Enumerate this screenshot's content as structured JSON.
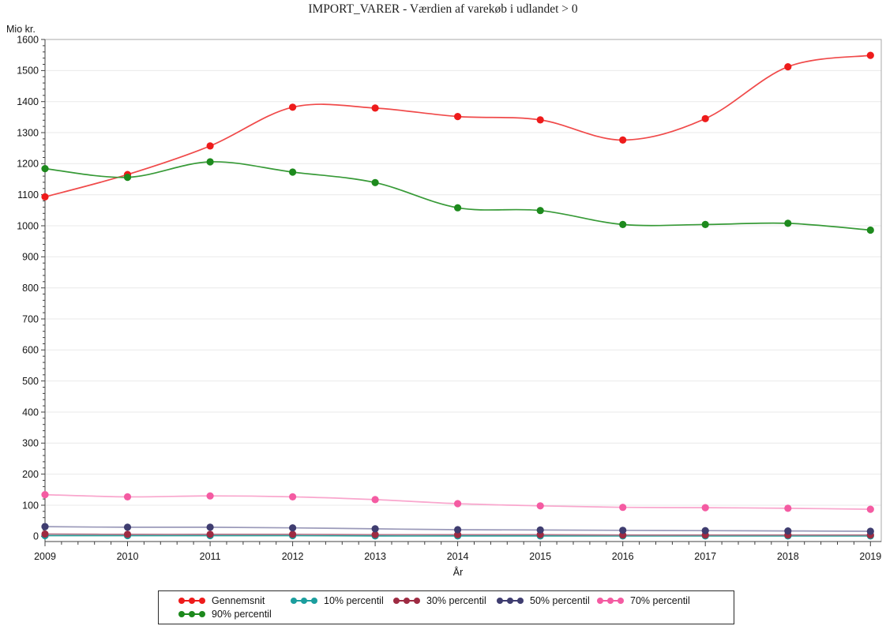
{
  "title": "IMPORT_VARER - Værdien af varekøb i udlandet > 0",
  "y_axis_unit_label": "Mio kr.",
  "x_axis_label": "År",
  "chart_data": {
    "type": "line",
    "title": "IMPORT_VARER - Værdien af varekøb i udlandet > 0",
    "xlabel": "År",
    "ylabel": "Mio kr.",
    "x": [
      2009,
      2010,
      2011,
      2012,
      2013,
      2014,
      2015,
      2016,
      2017,
      2018,
      2019
    ],
    "ylim": [
      0,
      1600
    ],
    "ytick_step": 100,
    "y_minor_step": 20,
    "x_minor_per_interval": 4,
    "grid": "horizontal",
    "legend_position": "bottom",
    "series": [
      {
        "name": "Gennemsnit",
        "color": "#ee1b1b",
        "line_color": "#f04a4a",
        "values": [
          1093,
          1165,
          1257,
          1382,
          1379,
          1352,
          1341,
          1276,
          1345,
          1512,
          1549
        ]
      },
      {
        "name": "10% percentil",
        "color": "#1b9e9e",
        "line_color": "#2aa19b",
        "values": [
          2,
          2,
          2,
          2,
          1,
          1,
          1,
          1,
          1,
          1,
          1
        ]
      },
      {
        "name": "30% percentil",
        "color": "#9e2b42",
        "line_color": "#b5778a",
        "values": [
          7,
          6,
          6,
          6,
          5,
          5,
          5,
          4,
          4,
          4,
          4
        ]
      },
      {
        "name": "50% percentil",
        "color": "#3f3d70",
        "line_color": "#9a99b9",
        "values": [
          31,
          29,
          29,
          27,
          24,
          21,
          20,
          19,
          18,
          17,
          16
        ]
      },
      {
        "name": "70% percentil",
        "color": "#f45ba2",
        "line_color": "#f9a6cd",
        "values": [
          134,
          127,
          130,
          127,
          118,
          105,
          98,
          93,
          92,
          90,
          87
        ]
      },
      {
        "name": "90% percentil",
        "color": "#1d8a1d",
        "line_color": "#379a37",
        "values": [
          1184,
          1156,
          1206,
          1173,
          1139,
          1058,
          1049,
          1004,
          1004,
          1008,
          986
        ]
      }
    ]
  },
  "legend": {
    "rows": [
      [
        "Gennemsnit",
        "10% percentil",
        "30% percentil",
        "50% percentil",
        "70% percentil"
      ],
      [
        "90% percentil"
      ]
    ]
  },
  "style": {
    "grid_color": "#e9e9e9",
    "frame_color": "#a9a9a9",
    "axis_color": "#404040",
    "text_color": "#141414"
  }
}
